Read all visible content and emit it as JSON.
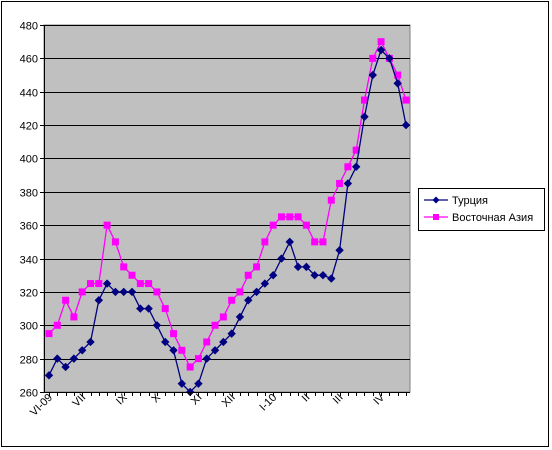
{
  "chart_data": {
    "type": "line",
    "title": "",
    "xlabel": "",
    "ylabel": "",
    "ylim": [
      260,
      480
    ],
    "yticks": [
      260,
      280,
      300,
      320,
      340,
      360,
      380,
      400,
      420,
      440,
      460,
      480
    ],
    "grid": true,
    "legend_position": "right",
    "plot_background": "#c0c0c0",
    "x_tick_labels": [
      {
        "label": "VI-09",
        "index": 0
      },
      {
        "label": "VII",
        "index": 4
      },
      {
        "label": "IX",
        "index": 9
      },
      {
        "label": "X",
        "index": 13
      },
      {
        "label": "XI",
        "index": 18
      },
      {
        "label": "XII",
        "index": 22
      },
      {
        "label": "I-10",
        "index": 27
      },
      {
        "label": "II",
        "index": 31
      },
      {
        "label": "III",
        "index": 35
      },
      {
        "label": "IV",
        "index": 40
      }
    ],
    "series": [
      {
        "name": "Турция",
        "color": "#000080",
        "marker": "diamond",
        "values": [
          270,
          280,
          275,
          280,
          285,
          290,
          315,
          325,
          320,
          320,
          320,
          310,
          310,
          300,
          290,
          285,
          265,
          260,
          265,
          280,
          285,
          290,
          295,
          305,
          315,
          320,
          325,
          330,
          340,
          350,
          335,
          335,
          330,
          330,
          328,
          345,
          385,
          395,
          425,
          450,
          465,
          460,
          445,
          420
        ]
      },
      {
        "name": "Восточная Азия",
        "color": "#ff00ff",
        "marker": "square",
        "values": [
          295,
          300,
          315,
          305,
          320,
          325,
          325,
          360,
          350,
          335,
          330,
          325,
          325,
          320,
          310,
          295,
          285,
          275,
          280,
          290,
          300,
          305,
          315,
          320,
          330,
          335,
          350,
          360,
          365,
          365,
          365,
          360,
          350,
          350,
          375,
          385,
          395,
          405,
          435,
          460,
          470,
          460,
          450,
          435
        ]
      }
    ]
  }
}
